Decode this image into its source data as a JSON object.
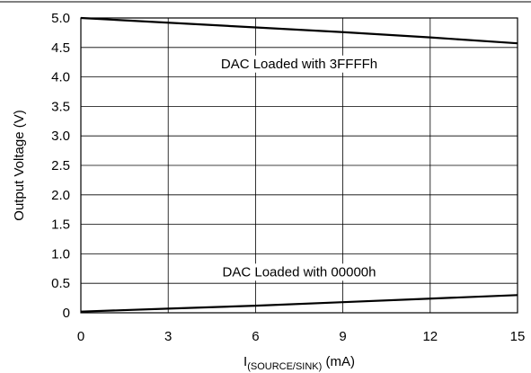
{
  "chart_data": {
    "type": "line",
    "xlabel_main": "I",
    "xlabel_sub": "(SOURCE/SINK)",
    "xlabel_unit": " (mA)",
    "ylabel": "Output Voltage (V)",
    "xlim": [
      0,
      15
    ],
    "ylim": [
      0,
      5
    ],
    "x_ticks": [
      "0",
      "3",
      "6",
      "9",
      "12",
      "15"
    ],
    "y_ticks": [
      "0",
      "0.5",
      "1.0",
      "1.5",
      "2.0",
      "2.5",
      "3.0",
      "3.5",
      "4.0",
      "4.5",
      "5.0"
    ],
    "grid": true,
    "series": [
      {
        "x": [
          0,
          3,
          6,
          9,
          12,
          15
        ],
        "y": [
          5.0,
          4.92,
          4.84,
          4.76,
          4.67,
          4.57
        ]
      },
      {
        "x": [
          0,
          3,
          6,
          9,
          12,
          15
        ],
        "y": [
          0.02,
          0.07,
          0.12,
          0.18,
          0.24,
          0.3
        ]
      }
    ],
    "annotations": [
      {
        "text": "DAC Loaded with 3FFFFh",
        "x": 7.5,
        "y": 4.15
      },
      {
        "text": "DAC Loaded with 00000h",
        "x": 7.5,
        "y": 0.62
      }
    ]
  }
}
